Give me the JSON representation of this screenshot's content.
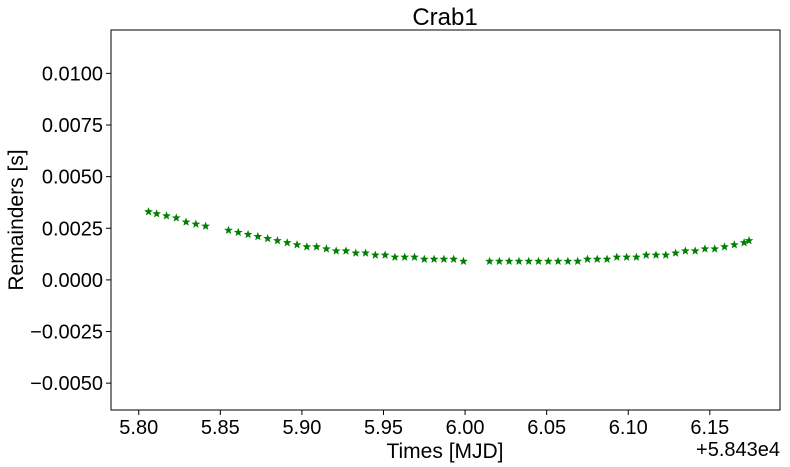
{
  "chart_data": {
    "type": "scatter",
    "title": "Crab1",
    "xlabel": "Times [MJD]",
    "ylabel": "Remainders [s]",
    "x_offset_label": "+5.843e4",
    "xlim": [
      5.783,
      6.193
    ],
    "ylim": [
      -0.0063,
      0.0121
    ],
    "x_ticks": [
      5.8,
      5.85,
      5.9,
      5.95,
      6.0,
      6.05,
      6.1,
      6.15
    ],
    "x_tick_labels": [
      "5.80",
      "5.85",
      "5.90",
      "5.95",
      "6.00",
      "6.05",
      "6.10",
      "6.15"
    ],
    "y_ticks": [
      0.01,
      0.0075,
      0.005,
      0.0025,
      0.0,
      -0.0025,
      -0.005
    ],
    "y_tick_labels": [
      "0.0100",
      "0.0075",
      "0.0050",
      "0.0025",
      "0.0000",
      "−0.0025",
      "−0.0050"
    ],
    "grid": false,
    "marker": "star",
    "color": "#008000",
    "series": [
      {
        "x": [
          5.806,
          5.811,
          5.817,
          5.823,
          5.829,
          5.835,
          5.841,
          5.855,
          5.861,
          5.867,
          5.873,
          5.879,
          5.885,
          5.891,
          5.897,
          5.903,
          5.909,
          5.915,
          5.921,
          5.927,
          5.933,
          5.939,
          5.945,
          5.951,
          5.957,
          5.963,
          5.969,
          5.975,
          5.981,
          5.987,
          5.993,
          5.999,
          6.015,
          6.021,
          6.027,
          6.033,
          6.039,
          6.045,
          6.051,
          6.057,
          6.063,
          6.069,
          6.075,
          6.081,
          6.087,
          6.093,
          6.099,
          6.105,
          6.111,
          6.117,
          6.123,
          6.129,
          6.135,
          6.141,
          6.147,
          6.153,
          6.159,
          6.165,
          6.171,
          6.174
        ],
        "y": [
          0.0033,
          0.0032,
          0.0031,
          0.003,
          0.0028,
          0.0027,
          0.0026,
          0.0024,
          0.0023,
          0.0022,
          0.0021,
          0.002,
          0.0019,
          0.0018,
          0.0017,
          0.0016,
          0.0016,
          0.0015,
          0.0014,
          0.0014,
          0.0013,
          0.0013,
          0.0012,
          0.0012,
          0.0011,
          0.0011,
          0.0011,
          0.001,
          0.001,
          0.001,
          0.001,
          0.0009,
          0.0009,
          0.0009,
          0.0009,
          0.0009,
          0.0009,
          0.0009,
          0.0009,
          0.0009,
          0.0009,
          0.0009,
          0.001,
          0.001,
          0.001,
          0.0011,
          0.0011,
          0.0011,
          0.0012,
          0.0012,
          0.0012,
          0.0013,
          0.0014,
          0.0014,
          0.0015,
          0.0015,
          0.0016,
          0.0017,
          0.0018,
          0.0019
        ]
      }
    ]
  }
}
